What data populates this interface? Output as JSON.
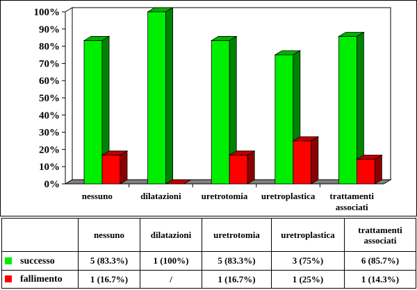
{
  "chart_data": {
    "type": "bar",
    "categories": [
      "nessuno",
      "dilatazioni",
      "uretrotomia",
      "uretroplastica",
      "trattamenti associati"
    ],
    "category_labels": [
      [
        "nessuno"
      ],
      [
        "dilatazioni"
      ],
      [
        "uretrotomia"
      ],
      [
        "uretroplastica"
      ],
      [
        "trattamenti",
        "associati"
      ]
    ],
    "series": [
      {
        "name": "successo",
        "values": [
          83.3,
          100,
          83.3,
          75,
          85.7
        ],
        "color": "#00ee00"
      },
      {
        "name": "fallimento",
        "values": [
          16.7,
          0,
          16.7,
          25,
          14.3
        ],
        "color": "#ff0000"
      }
    ],
    "ylim": [
      0,
      100
    ],
    "y_ticks": [
      "0%",
      "10%",
      "20%",
      "30%",
      "40%",
      "50%",
      "60%",
      "70%",
      "80%",
      "90%",
      "100%"
    ],
    "style": "3d-clustered-column",
    "grid": false,
    "legend": "bottom-table",
    "wall_color": "#ffffff",
    "floor_color": "#808080"
  },
  "table": {
    "headers": [
      "nessuno",
      "dilatazioni",
      "uretrotomia",
      "uretroplastica",
      "trattamenti\nassociati"
    ],
    "rows": [
      {
        "label": "successo",
        "color": "#00ee00",
        "cells": [
          "5 (83.3%)",
          "1 (100%)",
          "5 (83.3%)",
          "3 (75%)",
          "6 (85.7%)"
        ]
      },
      {
        "label": "fallimento",
        "color": "#ff0000",
        "cells": [
          "1 (16.7%)",
          "/",
          "1 (16.7%)",
          "1 (25%)",
          "1 (14.3%)"
        ]
      }
    ]
  }
}
